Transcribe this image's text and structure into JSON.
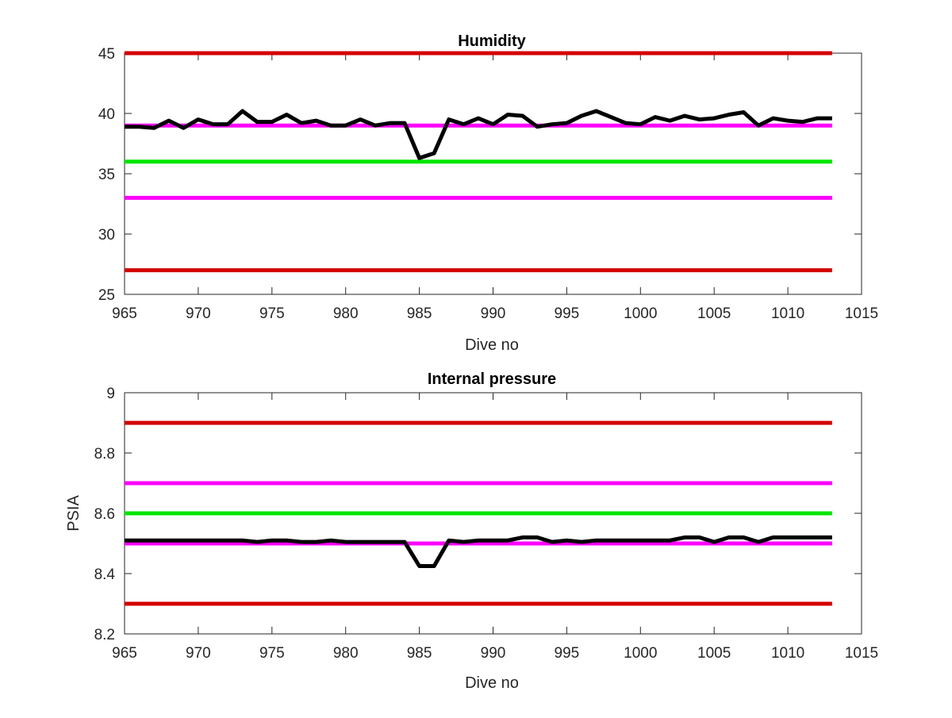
{
  "chart_data": [
    {
      "type": "line",
      "title": "Humidity",
      "xlabel": "Dive no",
      "ylabel": "",
      "xlim": [
        965,
        1015
      ],
      "ylim": [
        25,
        45
      ],
      "xticks": [
        965,
        970,
        975,
        980,
        985,
        990,
        995,
        1000,
        1005,
        1010,
        1015
      ],
      "yticks": [
        25,
        30,
        35,
        40,
        45
      ],
      "grid": false,
      "reference_lines": [
        {
          "y": 45,
          "color": "#d40000",
          "x_range": [
            965,
            1013
          ]
        },
        {
          "y": 39,
          "color": "#ff00ff",
          "x_range": [
            965,
            1013
          ]
        },
        {
          "y": 36,
          "color": "#00e600",
          "x_range": [
            965,
            1013
          ]
        },
        {
          "y": 33,
          "color": "#ff00ff",
          "x_range": [
            965,
            1013
          ]
        },
        {
          "y": 27,
          "color": "#d40000",
          "x_range": [
            965,
            1013
          ]
        }
      ],
      "series": [
        {
          "color": "#000000",
          "x": [
            965,
            966,
            967,
            968,
            969,
            970,
            971,
            972,
            973,
            974,
            975,
            976,
            977,
            978,
            979,
            980,
            981,
            982,
            983,
            984,
            985,
            986,
            987,
            988,
            989,
            990,
            991,
            992,
            993,
            994,
            995,
            996,
            997,
            998,
            999,
            1000,
            1001,
            1002,
            1003,
            1004,
            1005,
            1006,
            1007,
            1008,
            1009,
            1010,
            1011,
            1012,
            1013
          ],
          "y": [
            38.9,
            38.9,
            38.8,
            39.4,
            38.8,
            39.5,
            39.1,
            39.1,
            40.2,
            39.3,
            39.3,
            39.9,
            39.2,
            39.4,
            39.0,
            39.0,
            39.5,
            39.0,
            39.2,
            39.2,
            36.3,
            36.7,
            39.5,
            39.1,
            39.6,
            39.1,
            39.9,
            39.8,
            38.9,
            39.1,
            39.2,
            39.8,
            40.2,
            39.7,
            39.2,
            39.1,
            39.7,
            39.4,
            39.8,
            39.5,
            39.6,
            39.9,
            40.1,
            39.0,
            39.6,
            39.4,
            39.3,
            39.6,
            39.6
          ]
        }
      ]
    },
    {
      "type": "line",
      "title": "Internal pressure",
      "xlabel": "Dive no",
      "ylabel": "PSIA",
      "xlim": [
        965,
        1015
      ],
      "ylim": [
        8.2,
        9.0
      ],
      "xticks": [
        965,
        970,
        975,
        980,
        985,
        990,
        995,
        1000,
        1005,
        1010,
        1015
      ],
      "yticks": [
        "8.2",
        "8.4",
        "8.6",
        "8.8",
        "9"
      ],
      "grid": false,
      "reference_lines": [
        {
          "y": 8.9,
          "color": "#d40000",
          "x_range": [
            965,
            1013
          ]
        },
        {
          "y": 8.7,
          "color": "#ff00ff",
          "x_range": [
            965,
            1013
          ]
        },
        {
          "y": 8.6,
          "color": "#00e600",
          "x_range": [
            965,
            1013
          ]
        },
        {
          "y": 8.5,
          "color": "#ff00ff",
          "x_range": [
            965,
            1013
          ]
        },
        {
          "y": 8.3,
          "color": "#d40000",
          "x_range": [
            965,
            1013
          ]
        }
      ],
      "series": [
        {
          "color": "#000000",
          "x": [
            965,
            966,
            967,
            968,
            969,
            970,
            971,
            972,
            973,
            974,
            975,
            976,
            977,
            978,
            979,
            980,
            981,
            982,
            983,
            984,
            985,
            986,
            987,
            988,
            989,
            990,
            991,
            992,
            993,
            994,
            995,
            996,
            997,
            998,
            999,
            1000,
            1001,
            1002,
            1003,
            1004,
            1005,
            1006,
            1007,
            1008,
            1009,
            1010,
            1011,
            1012,
            1013
          ],
          "y": [
            8.51,
            8.51,
            8.51,
            8.51,
            8.51,
            8.51,
            8.51,
            8.51,
            8.51,
            8.505,
            8.51,
            8.51,
            8.505,
            8.505,
            8.51,
            8.505,
            8.505,
            8.505,
            8.505,
            8.505,
            8.425,
            8.425,
            8.51,
            8.505,
            8.51,
            8.51,
            8.51,
            8.52,
            8.52,
            8.505,
            8.51,
            8.505,
            8.51,
            8.51,
            8.51,
            8.51,
            8.51,
            8.51,
            8.52,
            8.52,
            8.505,
            8.52,
            8.52,
            8.505,
            8.52,
            8.52,
            8.52,
            8.52,
            8.52
          ]
        }
      ]
    }
  ]
}
